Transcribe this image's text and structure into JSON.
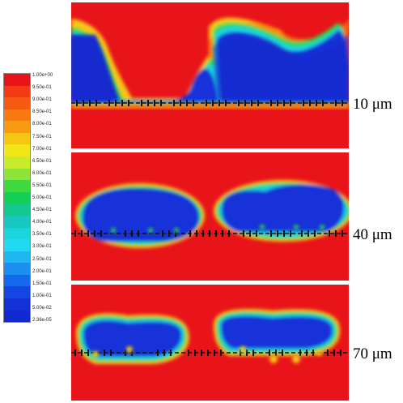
{
  "legend": {
    "labels": [
      "1.00e+00",
      "9.50e-01",
      "9.00e-01",
      "8.50e-01",
      "8.00e-01",
      "7.50e-01",
      "7.00e-01",
      "6.50e-01",
      "6.00e-01",
      "5.50e-01",
      "5.00e-01",
      "4.50e-01",
      "4.00e-01",
      "3.50e-01",
      "3.00e-01",
      "2.50e-01",
      "2.00e-01",
      "1.50e-01",
      "1.00e-01",
      "5.00e-02",
      "2.36e-05"
    ],
    "colors": [
      "#e8141a",
      "#f33a14",
      "#f65a10",
      "#f77a10",
      "#f89b12",
      "#f7c512",
      "#f2e618",
      "#c8ec2a",
      "#8fe43a",
      "#3ed93f",
      "#12cf55",
      "#14c98d",
      "#18c7c0",
      "#1ad5dc",
      "#22d9f2",
      "#1fb7f0",
      "#1a8ff0",
      "#1668ec",
      "#1346e4",
      "#1232d8",
      "#1229cf"
    ]
  },
  "panels": [
    {
      "caption": "10 μm"
    },
    {
      "caption": "40 μm"
    },
    {
      "caption": "70 μm"
    }
  ]
}
